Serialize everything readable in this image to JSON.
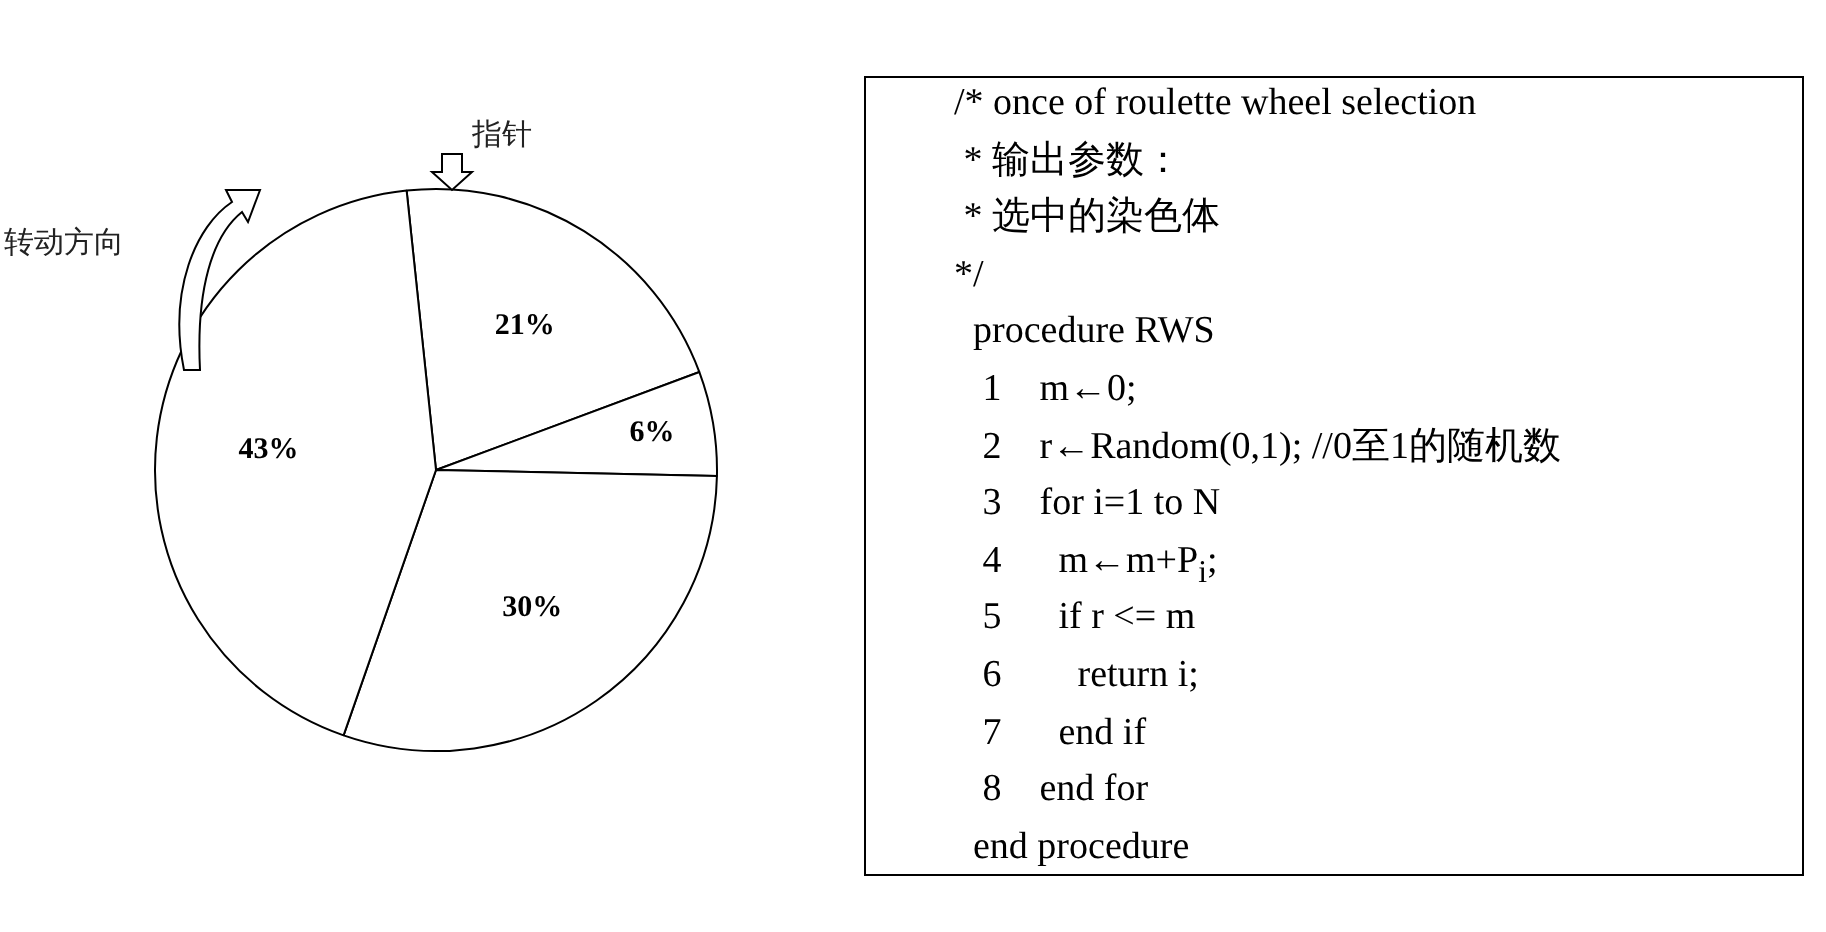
{
  "chart_data": [
    {
      "type": "pie",
      "categories": [
        null,
        null,
        null,
        null
      ],
      "values": [
        21,
        6,
        30,
        43
      ],
      "colors": [
        "#ffffff",
        "#ffffff",
        "#ffffff",
        "#ffffff"
      ],
      "value_labels": [
        "21%",
        "6%",
        "30%",
        "43%"
      ],
      "legend": false,
      "annotations": [
        "指针",
        "转动方向"
      ]
    },
    {
      "type": "other",
      "annotations": [
        "/* once of roulette wheel selection",
        " * 输出参数：",
        " * 选中的染色体",
        "*/",
        "  procedure RWS",
        "   1    m←0;",
        "   2    r←Random(0,1); //0至1的随机数",
        "   3    for i=1 to N",
        "   4      m←m+P$_{i}$;",
        "   5      if r <= m",
        "   6        return i;",
        "   7      end if",
        "   8    end for",
        "  end procedure"
      ]
    }
  ]
}
